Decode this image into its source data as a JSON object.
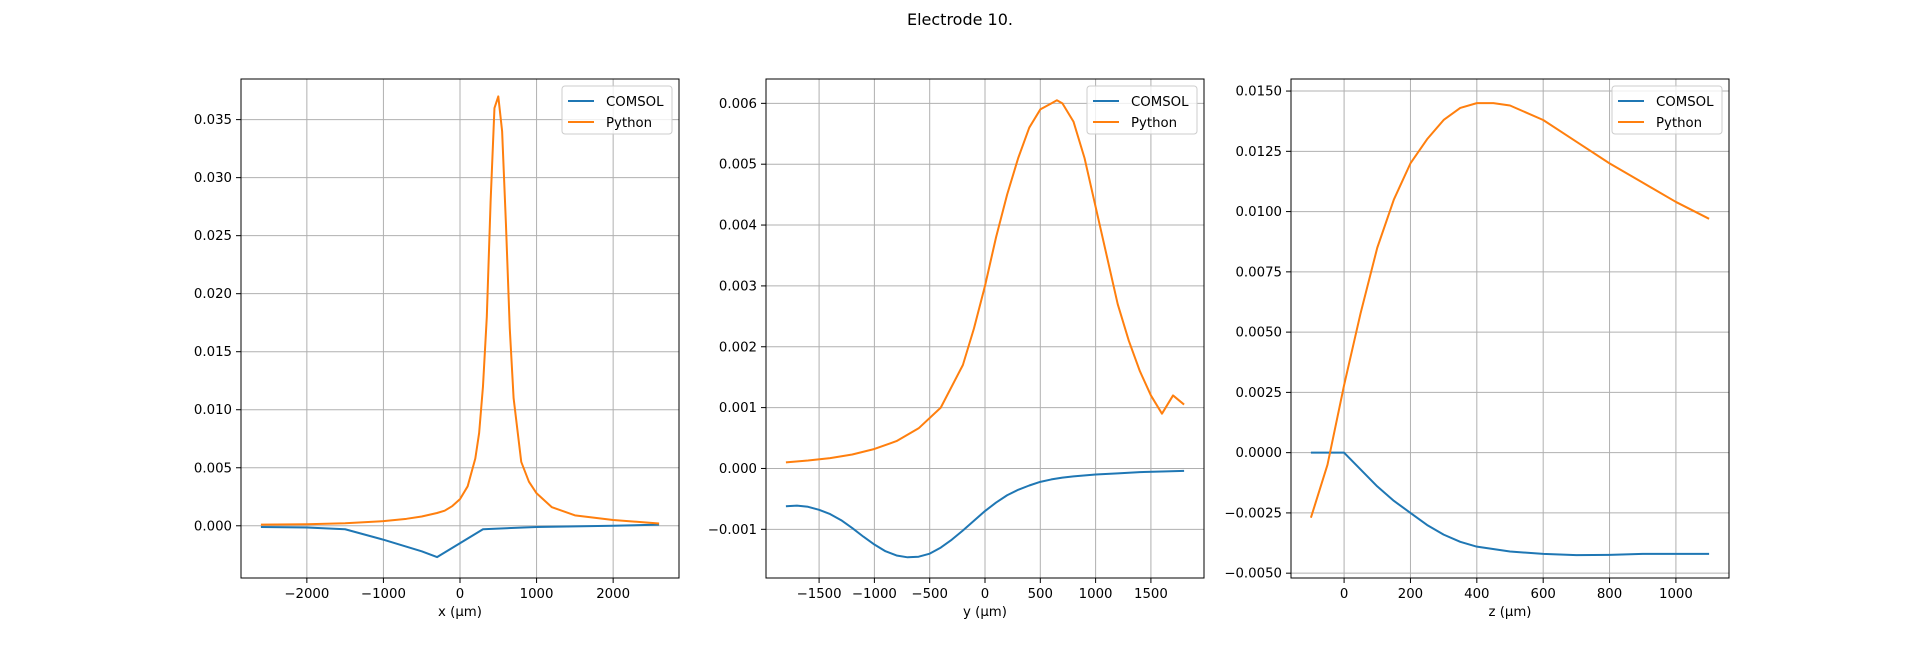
{
  "figure": {
    "title": "Electrode 10."
  },
  "colors": {
    "comsol": "#1f77b4",
    "python": "#ff7f0e",
    "grid": "#b0b0b0"
  },
  "chart_data": [
    {
      "type": "line",
      "xlabel": "x (µm)",
      "ylabel": "",
      "xlim": [
        -2860,
        2860
      ],
      "ylim": [
        -0.0045,
        0.0385
      ],
      "xticks": [
        -2000,
        -1000,
        0,
        1000,
        2000
      ],
      "xtick_labels": [
        "−2000",
        "−1000",
        "0",
        "1000",
        "2000"
      ],
      "yticks": [
        0.0,
        0.005,
        0.01,
        0.015,
        0.02,
        0.025,
        0.03,
        0.035
      ],
      "ytick_labels": [
        "0.000",
        "0.005",
        "0.010",
        "0.015",
        "0.020",
        "0.025",
        "0.030",
        "0.035"
      ],
      "grid": true,
      "legend": "top-right",
      "series": [
        {
          "name": "COMSOL",
          "color": "#1f77b4",
          "x": [
            -2600,
            -2000,
            -1500,
            -1000,
            -500,
            -300,
            300,
            1000,
            2000,
            2600
          ],
          "y": [
            -0.0001,
            -0.00015,
            -0.0003,
            -0.0012,
            -0.0022,
            -0.0027,
            -0.0003,
            -0.0001,
            0.0,
            0.0001
          ]
        },
        {
          "name": "Python",
          "color": "#ff7f0e",
          "x": [
            -2600,
            -2000,
            -1500,
            -1000,
            -700,
            -500,
            -300,
            -200,
            -100,
            0,
            100,
            200,
            250,
            300,
            350,
            400,
            450,
            500,
            550,
            600,
            650,
            700,
            800,
            900,
            1000,
            1200,
            1500,
            2000,
            2600
          ],
          "y": [
            0.0001,
            0.00013,
            0.00022,
            0.0004,
            0.0006,
            0.0008,
            0.0011,
            0.0013,
            0.0017,
            0.0023,
            0.0034,
            0.0058,
            0.008,
            0.012,
            0.018,
            0.028,
            0.036,
            0.037,
            0.034,
            0.026,
            0.017,
            0.011,
            0.0055,
            0.0038,
            0.0028,
            0.0016,
            0.0009,
            0.0005,
            0.0002
          ]
        }
      ]
    },
    {
      "type": "line",
      "xlabel": "y (µm)",
      "ylabel": "",
      "xlim": [
        -1980,
        1980
      ],
      "ylim": [
        -0.0018,
        0.0064
      ],
      "xticks": [
        -1500,
        -1000,
        -500,
        0,
        500,
        1000,
        1500
      ],
      "xtick_labels": [
        "−1500",
        "−1000",
        "−500",
        "0",
        "500",
        "1000",
        "1500"
      ],
      "yticks": [
        -0.001,
        0.0,
        0.001,
        0.002,
        0.003,
        0.004,
        0.005,
        0.006
      ],
      "ytick_labels": [
        "−0.001",
        "0.000",
        "0.001",
        "0.002",
        "0.003",
        "0.004",
        "0.005",
        "0.006"
      ],
      "grid": true,
      "legend": "top-right",
      "series": [
        {
          "name": "COMSOL",
          "color": "#1f77b4",
          "x": [
            -1800,
            -1700,
            -1600,
            -1500,
            -1400,
            -1300,
            -1200,
            -1100,
            -1000,
            -900,
            -800,
            -700,
            -600,
            -500,
            -400,
            -300,
            -200,
            -100,
            0,
            100,
            200,
            300,
            400,
            500,
            600,
            700,
            800,
            1000,
            1200,
            1400,
            1600,
            1800
          ],
          "y": [
            -0.00062,
            -0.00061,
            -0.00063,
            -0.00068,
            -0.00075,
            -0.00085,
            -0.00098,
            -0.00112,
            -0.00125,
            -0.00136,
            -0.00143,
            -0.00146,
            -0.00145,
            -0.0014,
            -0.0013,
            -0.00117,
            -0.00102,
            -0.00086,
            -0.0007,
            -0.00056,
            -0.00044,
            -0.00035,
            -0.00028,
            -0.00022,
            -0.00018,
            -0.00015,
            -0.00013,
            -0.0001,
            -8e-05,
            -6e-05,
            -5e-05,
            -4e-05
          ]
        },
        {
          "name": "Python",
          "color": "#ff7f0e",
          "x": [
            -1800,
            -1600,
            -1400,
            -1200,
            -1000,
            -800,
            -600,
            -400,
            -200,
            -100,
            0,
            100,
            200,
            300,
            400,
            500,
            600,
            650,
            700,
            800,
            900,
            1000,
            1100,
            1200,
            1300,
            1400,
            1500,
            1600,
            1700,
            1800
          ],
          "y": [
            0.0001,
            0.00013,
            0.00017,
            0.00023,
            0.00032,
            0.00045,
            0.00066,
            0.001,
            0.0017,
            0.0023,
            0.003,
            0.0038,
            0.0045,
            0.0051,
            0.0056,
            0.0059,
            0.006,
            0.00605,
            0.006,
            0.0057,
            0.0051,
            0.0043,
            0.0035,
            0.0027,
            0.0021,
            0.0016,
            0.0012,
            0.0009,
            0.0012,
            0.00105
          ]
        }
      ]
    },
    {
      "type": "line",
      "xlabel": "z (µm)",
      "ylabel": "",
      "xlim": [
        -160,
        1160
      ],
      "ylim": [
        -0.0052,
        0.0155
      ],
      "xticks": [
        0,
        200,
        400,
        600,
        800,
        1000
      ],
      "xtick_labels": [
        "0",
        "200",
        "400",
        "600",
        "800",
        "1000"
      ],
      "yticks": [
        -0.005,
        -0.0025,
        0.0,
        0.0025,
        0.005,
        0.0075,
        0.01,
        0.0125,
        0.015
      ],
      "ytick_labels": [
        "−0.0050",
        "−0.0025",
        "0.0000",
        "0.0025",
        "0.0050",
        "0.0075",
        "0.0100",
        "0.0125",
        "0.0150"
      ],
      "grid": true,
      "legend": "top-right",
      "series": [
        {
          "name": "COMSOL",
          "color": "#1f77b4",
          "x": [
            -100,
            0,
            50,
            100,
            150,
            200,
            250,
            300,
            350,
            400,
            500,
            600,
            700,
            800,
            900,
            1000,
            1100
          ],
          "y": [
            0.0,
            0.0,
            -0.0007,
            -0.0014,
            -0.002,
            -0.0025,
            -0.003,
            -0.0034,
            -0.0037,
            -0.0039,
            -0.0041,
            -0.0042,
            -0.00425,
            -0.00424,
            -0.0042,
            -0.0042,
            -0.0042
          ]
        },
        {
          "name": "Python",
          "color": "#ff7f0e",
          "x": [
            -100,
            -50,
            0,
            50,
            100,
            150,
            200,
            250,
            300,
            350,
            400,
            450,
            500,
            600,
            700,
            800,
            900,
            1000,
            1100
          ],
          "y": [
            -0.0027,
            -0.0005,
            0.0028,
            0.0058,
            0.0085,
            0.0105,
            0.012,
            0.013,
            0.0138,
            0.0143,
            0.0145,
            0.0145,
            0.0144,
            0.0138,
            0.0129,
            0.012,
            0.0112,
            0.0104,
            0.0097
          ]
        }
      ]
    }
  ]
}
